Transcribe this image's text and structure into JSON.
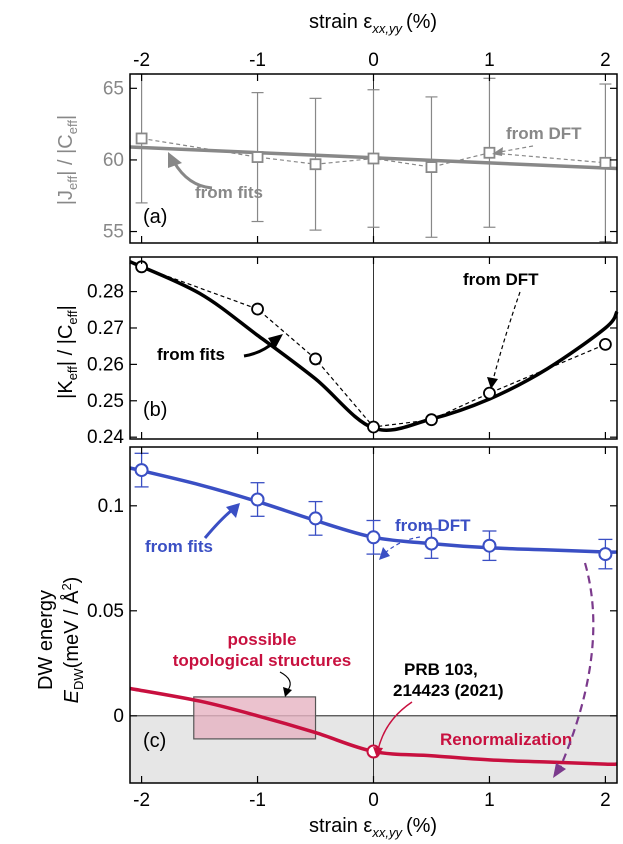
{
  "chart_data": [
    {
      "type": "scatter",
      "panel_label": "(a)",
      "top_axis_label": "strain ε",
      "top_axis_label_sub": "xx,yy",
      "top_axis_label_unit": "(%)",
      "ylabel_parts": [
        "|J",
        "eff",
        "| / |C",
        "eff",
        "|"
      ],
      "xlim": [
        -2.1,
        2.1
      ],
      "ylim": [
        54.2,
        66.0
      ],
      "xticks": [
        -2,
        -1,
        0,
        1,
        2
      ],
      "xtick_labels": [
        "-2",
        "-1",
        "0",
        "1",
        "2"
      ],
      "yticks": [
        55,
        60,
        65
      ],
      "ytick_labels": [
        "55",
        "60",
        "65"
      ],
      "color": "#888888",
      "series": [
        {
          "name": "from DFT",
          "marker": "square",
          "x": [
            -2,
            -1,
            -0.5,
            0,
            0.5,
            1,
            2
          ],
          "y": [
            61.5,
            60.2,
            59.7,
            60.1,
            59.5,
            60.5,
            59.8
          ],
          "err": [
            4.5,
            4.5,
            4.6,
            4.8,
            4.9,
            5.2,
            5.5
          ]
        },
        {
          "name": "from fits",
          "style": "line",
          "x": [
            -2.1,
            2.1
          ],
          "y": [
            60.9,
            59.4
          ]
        }
      ],
      "annotations": [
        "from DFT",
        "from fits"
      ]
    },
    {
      "type": "scatter",
      "panel_label": "(b)",
      "ylabel_parts": [
        "|K",
        "eff",
        "| / |C",
        "eff",
        "|"
      ],
      "xlim": [
        -2.1,
        2.1
      ],
      "ylim": [
        0.2395,
        0.2895
      ],
      "yticks": [
        0.24,
        0.25,
        0.26,
        0.27,
        0.28
      ],
      "ytick_labels": [
        "0.24",
        "0.25",
        "0.26",
        "0.27",
        "0.28"
      ],
      "color": "#000000",
      "series": [
        {
          "name": "from DFT",
          "marker": "circle",
          "x": [
            -2,
            -1,
            -0.5,
            0,
            0.5,
            1,
            2
          ],
          "y": [
            0.2868,
            0.2752,
            0.2615,
            0.2428,
            0.2448,
            0.2521,
            0.2655
          ]
        },
        {
          "name": "from fits",
          "style": "curve",
          "x": [
            -2.1,
            -1.5,
            -1,
            -0.5,
            0,
            0.5,
            1,
            1.5,
            2,
            2.1
          ],
          "y": [
            0.2882,
            0.2795,
            0.268,
            0.256,
            0.2425,
            0.245,
            0.2505,
            0.2588,
            0.27,
            0.2745
          ]
        }
      ],
      "annotations": [
        "from DFT",
        "from fits"
      ]
    },
    {
      "type": "scatter",
      "panel_label": "(c)",
      "xlabel": "strain ε",
      "xlabel_sub": "xx,yy",
      "xlabel_unit": "(%)",
      "ylabel_line1": "DW energy",
      "ylabel_E": "E",
      "ylabel_sub": "DW",
      "ylabel_unit": "(meV / Å",
      "ylabel_sup": "2",
      "ylabel_close": ")",
      "xlim": [
        -2.1,
        2.1
      ],
      "ylim": [
        -0.032,
        0.128
      ],
      "yticks": [
        0,
        0.05,
        0.1
      ],
      "ytick_labels": [
        "0",
        "0.05",
        "0.1"
      ],
      "colors": {
        "dft": "#3a4fc4",
        "renorm": "#c8103f",
        "box": "#e6b3c2",
        "shade": "#e6e6e6"
      },
      "series": [
        {
          "name": "from DFT",
          "marker": "circle",
          "x": [
            -2,
            -1,
            -0.5,
            0,
            0.5,
            1,
            2
          ],
          "y": [
            0.117,
            0.103,
            0.094,
            0.085,
            0.082,
            0.081,
            0.077
          ],
          "err": [
            0.008,
            0.008,
            0.008,
            0.008,
            0.007,
            0.007,
            0.007
          ]
        },
        {
          "name": "from fits",
          "style": "curve",
          "x": [
            -2.1,
            -1.5,
            -1,
            -0.5,
            0,
            0.5,
            1,
            1.5,
            2,
            2.1
          ],
          "y": [
            0.118,
            0.11,
            0.102,
            0.093,
            0.085,
            0.082,
            0.08,
            0.079,
            0.078,
            0.078
          ]
        },
        {
          "name": "Renormalization",
          "style": "curve",
          "x": [
            -2.1,
            -1.5,
            -1,
            -0.5,
            0,
            0.5,
            1,
            1.5,
            2,
            2.1
          ],
          "y": [
            0.013,
            0.007,
            0.0,
            -0.008,
            -0.017,
            -0.019,
            -0.021,
            -0.022,
            -0.023,
            -0.023
          ]
        },
        {
          "name": "PRB 103, 214423 (2021)",
          "marker": "circle",
          "x": [
            0
          ],
          "y": [
            -0.017
          ]
        }
      ],
      "box": {
        "x0": -1.55,
        "x1": -0.5,
        "y0": -0.011,
        "y1": 0.009
      },
      "annotations": [
        "from DFT",
        "from fits",
        "possible",
        "topological structures",
        "PRB 103,",
        "214423 (2021)",
        "Renormalization"
      ]
    }
  ]
}
